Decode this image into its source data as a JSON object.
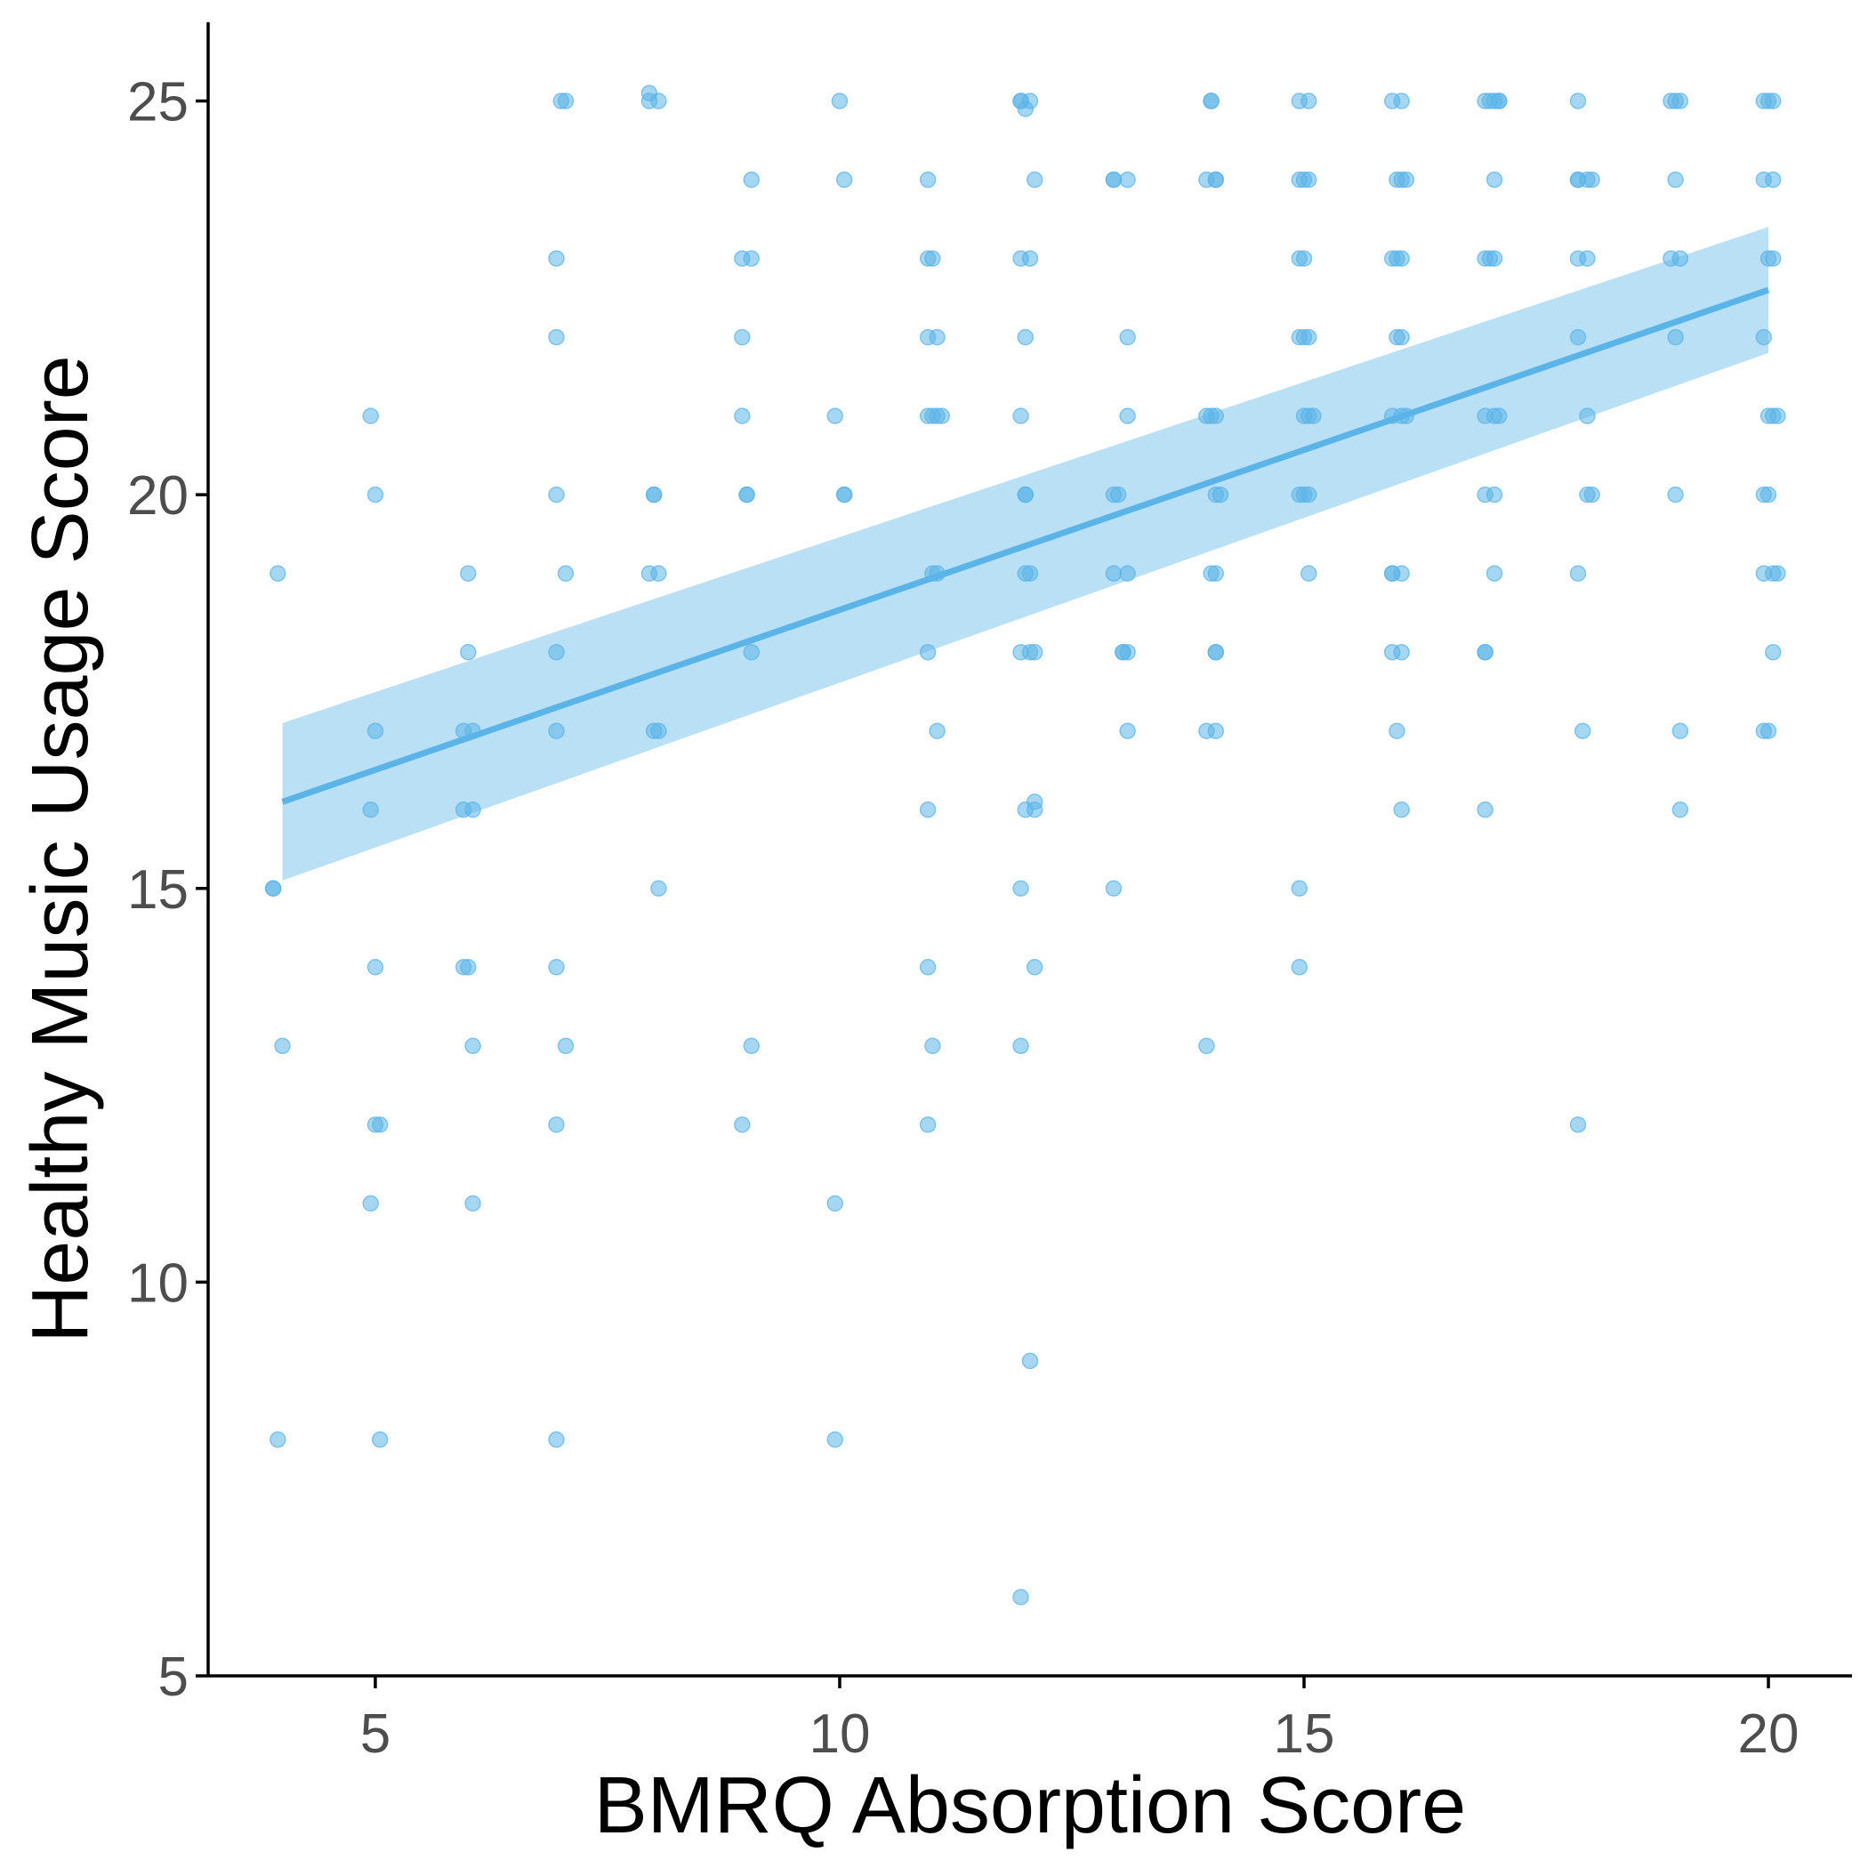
{
  "chart_data": {
    "type": "scatter",
    "xlabel": "BMRQ Absorption Score",
    "ylabel": "Healthy Music Usage Score",
    "xlim": [
      3.2,
      20.9
    ],
    "ylim": [
      5,
      26
    ],
    "x_ticks": [
      5,
      10,
      15,
      20
    ],
    "y_ticks": [
      5,
      10,
      15,
      20,
      25
    ],
    "grid": false,
    "legend": "none",
    "colors": {
      "points": "#5BB4E8",
      "line": "#5BB4E8",
      "band": "#5BB4E8"
    },
    "trend": {
      "x": [
        4,
        20
      ],
      "y": [
        16.1,
        22.6
      ],
      "ci_lower": [
        15.1,
        21.8
      ],
      "ci_upper": [
        17.1,
        23.4
      ]
    },
    "points": [
      [
        3.9,
        15.0
      ],
      [
        3.9,
        15.0
      ],
      [
        3.95,
        19.0
      ],
      [
        3.95,
        8.0
      ],
      [
        4.0,
        13.0
      ],
      [
        4.95,
        21.0
      ],
      [
        5.0,
        20.0
      ],
      [
        5.0,
        17.0
      ],
      [
        4.95,
        16.0
      ],
      [
        5.0,
        14.0
      ],
      [
        5.0,
        12.0
      ],
      [
        5.05,
        12.0
      ],
      [
        4.95,
        11.0
      ],
      [
        5.05,
        8.0
      ],
      [
        6.0,
        19.0
      ],
      [
        6.0,
        18.0
      ],
      [
        5.95,
        17.0
      ],
      [
        6.05,
        17.0
      ],
      [
        5.95,
        16.0
      ],
      [
        6.05,
        16.0
      ],
      [
        5.95,
        14.0
      ],
      [
        6.0,
        14.0
      ],
      [
        6.05,
        13.0
      ],
      [
        6.05,
        11.0
      ],
      [
        7.0,
        25.0
      ],
      [
        7.05,
        25.0
      ],
      [
        6.95,
        23.0
      ],
      [
        6.95,
        22.0
      ],
      [
        6.95,
        20.0
      ],
      [
        7.05,
        19.0
      ],
      [
        6.95,
        18.0
      ],
      [
        6.95,
        17.0
      ],
      [
        6.95,
        14.0
      ],
      [
        7.05,
        13.0
      ],
      [
        6.95,
        12.0
      ],
      [
        6.95,
        8.0
      ],
      [
        7.95,
        25.0
      ],
      [
        7.95,
        25.1
      ],
      [
        8.05,
        25.0
      ],
      [
        8.0,
        20.0
      ],
      [
        8.0,
        20.0
      ],
      [
        7.95,
        19.0
      ],
      [
        8.05,
        19.0
      ],
      [
        8.0,
        17.0
      ],
      [
        8.05,
        17.0
      ],
      [
        8.05,
        15.0
      ],
      [
        9.05,
        24.0
      ],
      [
        8.95,
        23.0
      ],
      [
        9.05,
        23.0
      ],
      [
        8.95,
        22.0
      ],
      [
        8.95,
        21.0
      ],
      [
        9.0,
        20.0
      ],
      [
        9.0,
        20.0
      ],
      [
        9.05,
        18.0
      ],
      [
        9.05,
        13.0
      ],
      [
        8.95,
        12.0
      ],
      [
        10.0,
        25.0
      ],
      [
        10.05,
        24.0
      ],
      [
        9.95,
        21.0
      ],
      [
        10.05,
        20.0
      ],
      [
        10.05,
        20.0
      ],
      [
        9.95,
        11.0
      ],
      [
        9.95,
        8.0
      ],
      [
        10.95,
        24.0
      ],
      [
        10.95,
        23.0
      ],
      [
        11.0,
        23.0
      ],
      [
        10.95,
        22.0
      ],
      [
        11.05,
        22.0
      ],
      [
        10.95,
        21.0
      ],
      [
        11.05,
        21.0
      ],
      [
        11.0,
        21.0
      ],
      [
        11.1,
        21.0
      ],
      [
        11.0,
        19.0
      ],
      [
        11.05,
        19.0
      ],
      [
        10.95,
        18.0
      ],
      [
        11.05,
        17.0
      ],
      [
        10.95,
        16.0
      ],
      [
        10.95,
        14.0
      ],
      [
        11.0,
        13.0
      ],
      [
        10.95,
        12.0
      ],
      [
        11.95,
        25.0
      ],
      [
        11.95,
        25.0
      ],
      [
        12.0,
        24.9
      ],
      [
        12.05,
        25.0
      ],
      [
        12.1,
        24.0
      ],
      [
        11.95,
        23.0
      ],
      [
        12.05,
        23.0
      ],
      [
        12.0,
        22.0
      ],
      [
        11.95,
        21.0
      ],
      [
        12.0,
        20.0
      ],
      [
        12.0,
        20.0
      ],
      [
        12.0,
        19.0
      ],
      [
        12.05,
        19.0
      ],
      [
        11.95,
        18.0
      ],
      [
        12.05,
        18.0
      ],
      [
        12.1,
        18.0
      ],
      [
        12.0,
        16.0
      ],
      [
        12.1,
        16.0
      ],
      [
        12.1,
        16.1
      ],
      [
        11.95,
        15.0
      ],
      [
        12.1,
        14.0
      ],
      [
        11.95,
        13.0
      ],
      [
        12.05,
        9.0
      ],
      [
        11.95,
        6.0
      ],
      [
        12.95,
        24.0
      ],
      [
        12.95,
        24.0
      ],
      [
        13.1,
        24.0
      ],
      [
        13.1,
        22.0
      ],
      [
        13.1,
        21.0
      ],
      [
        12.95,
        20.0
      ],
      [
        13.0,
        20.0
      ],
      [
        12.95,
        19.0
      ],
      [
        13.1,
        19.0
      ],
      [
        13.05,
        18.0
      ],
      [
        13.1,
        18.0
      ],
      [
        13.05,
        18.0
      ],
      [
        13.1,
        17.0
      ],
      [
        12.95,
        15.0
      ],
      [
        14.0,
        25.0
      ],
      [
        14.0,
        25.0
      ],
      [
        13.95,
        24.0
      ],
      [
        14.05,
        24.0
      ],
      [
        14.05,
        24.0
      ],
      [
        13.95,
        21.0
      ],
      [
        14.05,
        21.0
      ],
      [
        14.0,
        21.0
      ],
      [
        14.05,
        20.0
      ],
      [
        14.1,
        20.0
      ],
      [
        14.05,
        19.0
      ],
      [
        14.0,
        19.0
      ],
      [
        14.05,
        18.0
      ],
      [
        14.05,
        18.0
      ],
      [
        13.95,
        17.0
      ],
      [
        14.05,
        17.0
      ],
      [
        13.95,
        13.0
      ],
      [
        14.95,
        25.0
      ],
      [
        15.05,
        25.0
      ],
      [
        14.95,
        24.0
      ],
      [
        15.05,
        24.0
      ],
      [
        15.0,
        24.0
      ],
      [
        14.95,
        23.0
      ],
      [
        15.0,
        23.0
      ],
      [
        14.95,
        22.0
      ],
      [
        15.0,
        22.0
      ],
      [
        15.05,
        22.0
      ],
      [
        15.0,
        21.0
      ],
      [
        15.05,
        21.0
      ],
      [
        15.1,
        21.0
      ],
      [
        14.95,
        20.0
      ],
      [
        15.0,
        20.0
      ],
      [
        15.05,
        20.0
      ],
      [
        15.05,
        19.0
      ],
      [
        14.95,
        15.0
      ],
      [
        14.95,
        14.0
      ],
      [
        15.95,
        25.0
      ],
      [
        16.05,
        25.0
      ],
      [
        16.0,
        24.0
      ],
      [
        16.05,
        24.0
      ],
      [
        16.1,
        24.0
      ],
      [
        15.95,
        23.0
      ],
      [
        16.05,
        23.0
      ],
      [
        16.0,
        23.0
      ],
      [
        16.0,
        22.0
      ],
      [
        16.05,
        22.0
      ],
      [
        15.95,
        21.0
      ],
      [
        16.05,
        21.0
      ],
      [
        16.1,
        21.0
      ],
      [
        15.95,
        19.0
      ],
      [
        16.05,
        19.0
      ],
      [
        15.95,
        19.0
      ],
      [
        15.95,
        18.0
      ],
      [
        16.05,
        18.0
      ],
      [
        16.0,
        17.0
      ],
      [
        16.05,
        16.0
      ],
      [
        16.95,
        25.0
      ],
      [
        17.0,
        25.0
      ],
      [
        17.05,
        25.0
      ],
      [
        17.1,
        25.0
      ],
      [
        17.1,
        25.0
      ],
      [
        17.05,
        24.0
      ],
      [
        16.95,
        23.0
      ],
      [
        17.05,
        23.0
      ],
      [
        17.0,
        23.0
      ],
      [
        16.95,
        21.0
      ],
      [
        17.05,
        21.0
      ],
      [
        17.1,
        21.0
      ],
      [
        16.95,
        20.0
      ],
      [
        17.05,
        20.0
      ],
      [
        17.05,
        19.0
      ],
      [
        16.95,
        18.0
      ],
      [
        16.95,
        18.0
      ],
      [
        16.95,
        16.0
      ],
      [
        17.95,
        25.0
      ],
      [
        17.95,
        24.0
      ],
      [
        17.95,
        24.0
      ],
      [
        18.05,
        24.0
      ],
      [
        18.1,
        24.0
      ],
      [
        17.95,
        23.0
      ],
      [
        18.05,
        23.0
      ],
      [
        17.95,
        22.0
      ],
      [
        18.05,
        21.0
      ],
      [
        18.05,
        20.0
      ],
      [
        18.1,
        20.0
      ],
      [
        17.95,
        19.0
      ],
      [
        18.0,
        17.0
      ],
      [
        17.95,
        12.0
      ],
      [
        18.95,
        25.0
      ],
      [
        19.0,
        25.0
      ],
      [
        19.05,
        25.0
      ],
      [
        19.0,
        24.0
      ],
      [
        18.95,
        23.0
      ],
      [
        19.05,
        23.0
      ],
      [
        19.0,
        22.0
      ],
      [
        19.0,
        20.0
      ],
      [
        19.05,
        17.0
      ],
      [
        19.05,
        16.0
      ],
      [
        19.95,
        25.0
      ],
      [
        20.0,
        25.0
      ],
      [
        20.05,
        25.0
      ],
      [
        19.95,
        24.0
      ],
      [
        20.05,
        24.0
      ],
      [
        20.05,
        23.0
      ],
      [
        20.0,
        23.0
      ],
      [
        19.95,
        22.0
      ],
      [
        20.0,
        21.0
      ],
      [
        20.05,
        21.0
      ],
      [
        20.1,
        21.0
      ],
      [
        19.95,
        20.0
      ],
      [
        20.0,
        20.0
      ],
      [
        19.95,
        19.0
      ],
      [
        20.05,
        19.0
      ],
      [
        20.1,
        19.0
      ],
      [
        20.05,
        18.0
      ],
      [
        19.95,
        17.0
      ],
      [
        20.0,
        17.0
      ]
    ]
  }
}
